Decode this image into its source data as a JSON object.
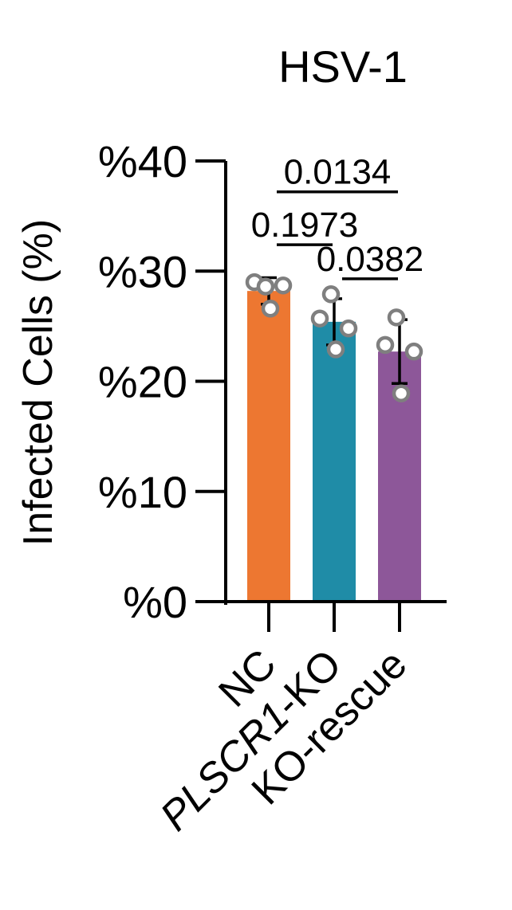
{
  "chart_data": {
    "type": "bar",
    "title": "HSV-1",
    "ylabel": "Infected Cells (%)",
    "xlabel": "",
    "ylim": [
      0,
      40
    ],
    "yticks": [
      0,
      10,
      20,
      30,
      40
    ],
    "ytick_labels": [
      "%0",
      "%10",
      "%20",
      "%30",
      "%40"
    ],
    "categories": [
      "NC",
      "PLSCR1-KO",
      "KO-rescue"
    ],
    "italic_category": "PLSCR1",
    "values": [
      28.2,
      25.4,
      22.7
    ],
    "error": [
      1.2,
      2.1,
      2.9
    ],
    "points": [
      [
        29.0,
        28.6,
        28.7,
        26.6
      ],
      [
        25.7,
        27.9,
        24.8,
        22.9
      ],
      [
        23.3,
        25.8,
        22.7,
        18.9
      ]
    ],
    "colors": [
      "#ED7731",
      "#1F8CA7",
      "#8D5799"
    ],
    "point_color": "#7f7f7f",
    "grid": false,
    "legend": "none",
    "comparisons": [
      {
        "from": 0,
        "to": 2,
        "label": "0.0134",
        "y": 37.2
      },
      {
        "from": 0,
        "to": 1,
        "label": "0.1973",
        "y": 32.4
      },
      {
        "from": 1,
        "to": 2,
        "label": "0.0382",
        "y": 29.3
      }
    ]
  }
}
